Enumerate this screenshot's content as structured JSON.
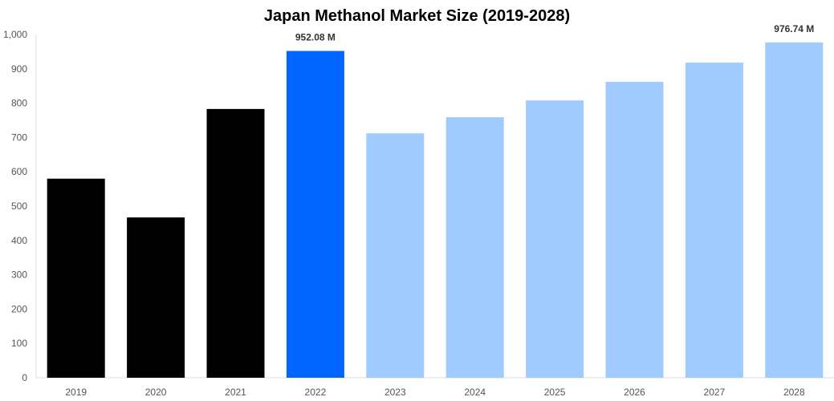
{
  "chart_data": {
    "type": "bar",
    "title": "Japan Methanol Market Size (2019-2028)",
    "xlabel": "",
    "ylabel": "",
    "categories": [
      "2019",
      "2020",
      "2021",
      "2022",
      "2023",
      "2024",
      "2025",
      "2026",
      "2027",
      "2028"
    ],
    "values": [
      580,
      467,
      783,
      952.08,
      712,
      759,
      808,
      862,
      918,
      976.74
    ],
    "bar_colors": [
      "#000000",
      "#000000",
      "#000000",
      "#0066ff",
      "#a0cbff",
      "#a0cbff",
      "#a0cbff",
      "#a0cbff",
      "#a0cbff",
      "#a0cbff"
    ],
    "data_labels": [
      "",
      "",
      "",
      "952.08 M",
      "",
      "",
      "",
      "",
      "",
      "976.74 M"
    ],
    "ylim": [
      0,
      1000
    ],
    "yticks": [
      0,
      100,
      200,
      300,
      400,
      500,
      600,
      700,
      800,
      900,
      1000
    ],
    "ytick_labels": [
      "0",
      "100",
      "200",
      "300",
      "400",
      "500",
      "600",
      "700",
      "800",
      "900",
      "1,000"
    ],
    "grid": false,
    "legend": "none"
  }
}
